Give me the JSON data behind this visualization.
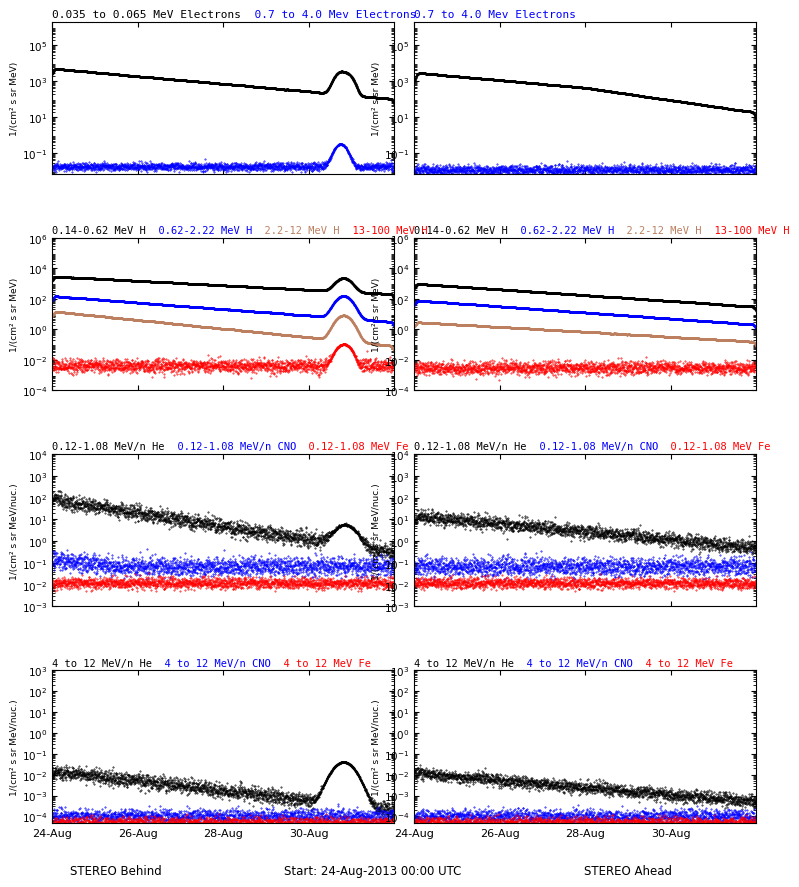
{
  "panels": {
    "r0l_title": [
      [
        "0.035 to 0.065 MeV Electrons",
        "#000000"
      ],
      [
        "  0.7 to 4.0 Mev Electrons",
        "#0000ff"
      ]
    ],
    "r0r_title": [
      [
        "0.7 to 4.0 Mev Electrons",
        "#0000ff"
      ]
    ],
    "r1l_title": [
      [
        "0.14-0.62 MeV H",
        "#000000"
      ],
      [
        "  0.62-2.22 MeV H",
        "#0000ff"
      ],
      [
        "  2.2-12 MeV H",
        "#bc8060"
      ],
      [
        "  13-100 MeV H",
        "#ff0000"
      ]
    ],
    "r1r_title": [
      [
        "0.14-0.62 MeV H",
        "#000000"
      ],
      [
        "  0.62-2.22 MeV H",
        "#0000ff"
      ],
      [
        "  2.2-12 MeV H",
        "#bc8060"
      ],
      [
        "  13-100 MeV H",
        "#ff0000"
      ]
    ],
    "r2l_title": [
      [
        "0.12-1.08 MeV/n He",
        "#000000"
      ],
      [
        "  0.12-1.08 MeV/n CNO",
        "#0000ff"
      ],
      [
        "  0.12-1.08 MeV Fe",
        "#ff0000"
      ]
    ],
    "r2r_title": [
      [
        "0.12-1.08 MeV/n He",
        "#000000"
      ],
      [
        "  0.12-1.08 MeV/n CNO",
        "#0000ff"
      ],
      [
        "  0.12-1.08 MeV Fe",
        "#ff0000"
      ]
    ],
    "r3l_title": [
      [
        "4 to 12 MeV/n He",
        "#000000"
      ],
      [
        "  4 to 12 MeV/n CNO",
        "#0000ff"
      ],
      [
        "  4 to 12 MeV Fe",
        "#ff0000"
      ]
    ],
    "r3r_title": [
      [
        "4 to 12 MeV/n He",
        "#000000"
      ],
      [
        "  4 to 12 MeV/n CNO",
        "#0000ff"
      ],
      [
        "  4 to 12 MeV Fe",
        "#ff0000"
      ]
    ]
  },
  "ylabel_elec": "1/(cm² s sr MeV)",
  "ylabel_heavy": "1/(cm² s sr MeV/nuc.)",
  "xticklabels": [
    "24-Aug",
    "26-Aug",
    "28-Aug",
    "30-Aug"
  ],
  "xlabel_left": "STEREO Behind",
  "xlabel_center": "Start: 24-Aug-2013 00:00 UTC",
  "xlabel_right": "STEREO Ahead",
  "bg_color": "#ffffff",
  "black": "#000000",
  "blue": "#0000ff",
  "brown": "#bc8060",
  "red": "#ff0000"
}
